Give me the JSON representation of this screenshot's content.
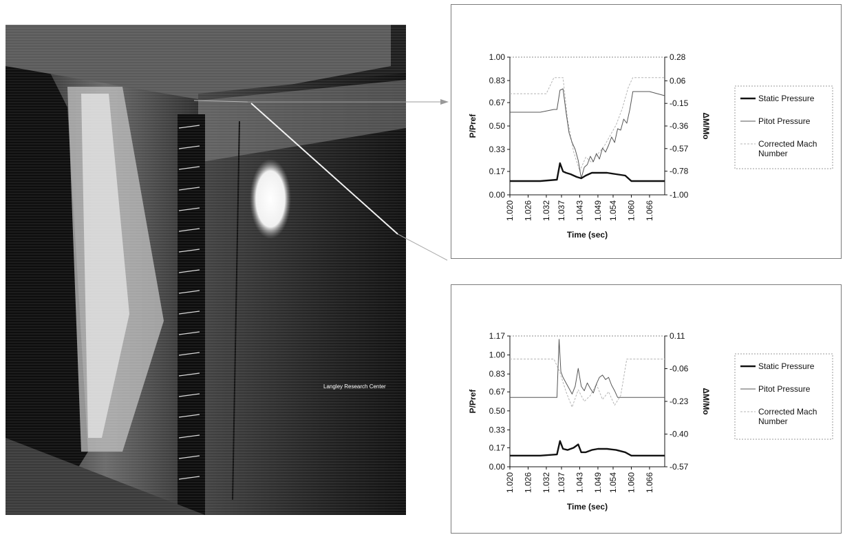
{
  "photo": {
    "caption": "Langley Research Center"
  },
  "chart_data": [
    {
      "type": "line",
      "xlabel": "Time (sec)",
      "ylabel": "P/Pref",
      "y2label": "ΔM/Mo",
      "x_ticks": [
        "1.020",
        "1.026",
        "1.032",
        "1.037",
        "1.043",
        "1.049",
        "1.054",
        "1.060",
        "1.066"
      ],
      "y_ticks": [
        "1.00",
        "0.83",
        "0.67",
        "0.50",
        "0.33",
        "0.17",
        "0.00"
      ],
      "y2_ticks": [
        "0.28",
        "0.06",
        "-0.15",
        "-0.36",
        "-0.57",
        "-0.78",
        "-1.00"
      ],
      "xlim": [
        1.02,
        1.071
      ],
      "ylim": [
        0,
        1.0
      ],
      "y2lim": [
        -1.0,
        0.28
      ],
      "grid": false,
      "legend_position": "right",
      "series": [
        {
          "name": "Static Pressure",
          "color": "#111111",
          "style": "thick",
          "axis": "left",
          "x": [
            1.02,
            1.03,
            1.0355,
            1.0365,
            1.0375,
            1.0385,
            1.04,
            1.042,
            1.0435,
            1.045,
            1.047,
            1.049,
            1.052,
            1.055,
            1.058,
            1.06,
            1.062,
            1.066,
            1.071
          ],
          "y": [
            0.1,
            0.1,
            0.11,
            0.23,
            0.17,
            0.16,
            0.15,
            0.13,
            0.12,
            0.14,
            0.16,
            0.16,
            0.16,
            0.15,
            0.14,
            0.1,
            0.1,
            0.1,
            0.1
          ]
        },
        {
          "name": "Pitot Pressure",
          "color": "#555555",
          "style": "thin",
          "axis": "left",
          "x": [
            1.02,
            1.03,
            1.0345,
            1.0355,
            1.0365,
            1.0375,
            1.0385,
            1.0395,
            1.0405,
            1.0415,
            1.0425,
            1.0435,
            1.0445,
            1.0455,
            1.0465,
            1.0475,
            1.0485,
            1.0495,
            1.0505,
            1.0515,
            1.0525,
            1.0535,
            1.0545,
            1.0555,
            1.0565,
            1.0575,
            1.0585,
            1.0595,
            1.0605,
            1.066,
            1.071
          ],
          "y": [
            0.6,
            0.6,
            0.62,
            0.62,
            0.76,
            0.77,
            0.6,
            0.45,
            0.38,
            0.33,
            0.25,
            0.12,
            0.2,
            0.22,
            0.28,
            0.24,
            0.3,
            0.26,
            0.34,
            0.31,
            0.36,
            0.42,
            0.38,
            0.48,
            0.47,
            0.55,
            0.52,
            0.62,
            0.75,
            0.75,
            0.72
          ]
        },
        {
          "name": "Corrected Mach Number",
          "color": "#b5b5b5",
          "style": "thin",
          "axis": "right",
          "x": [
            1.02,
            1.026,
            1.03,
            1.032,
            1.0345,
            1.0355,
            1.0375,
            1.039,
            1.041,
            1.043,
            1.045,
            1.047,
            1.049,
            1.051,
            1.053,
            1.055,
            1.057,
            1.059,
            1.0605,
            1.066,
            1.071
          ],
          "y": [
            -0.06,
            -0.06,
            -0.06,
            -0.06,
            0.09,
            0.09,
            0.09,
            -0.3,
            -0.6,
            -0.78,
            -0.65,
            -0.7,
            -0.62,
            -0.55,
            -0.45,
            -0.35,
            -0.2,
            0.0,
            0.09,
            0.09,
            0.09
          ]
        }
      ]
    },
    {
      "type": "line",
      "xlabel": "Time (sec)",
      "ylabel": "P/Pref",
      "y2label": "ΔM/Mo",
      "x_ticks": [
        "1.020",
        "1.026",
        "1.032",
        "1.037",
        "1.043",
        "1.049",
        "1.054",
        "1.060",
        "1.066"
      ],
      "y_ticks": [
        "1.17",
        "1.00",
        "0.83",
        "0.67",
        "0.50",
        "0.33",
        "0.17",
        "0.00"
      ],
      "y2_ticks": [
        "0.11",
        "-0.06",
        "-0.23",
        "-0.40",
        "-0.57"
      ],
      "xlim": [
        1.02,
        1.071
      ],
      "ylim": [
        0,
        1.17
      ],
      "y2lim": [
        -0.57,
        0.11
      ],
      "grid": false,
      "legend_position": "right",
      "series": [
        {
          "name": "Static Pressure",
          "color": "#111111",
          "style": "thick",
          "axis": "left",
          "x": [
            1.02,
            1.03,
            1.0355,
            1.0365,
            1.0375,
            1.039,
            1.041,
            1.0425,
            1.0435,
            1.045,
            1.047,
            1.049,
            1.052,
            1.055,
            1.058,
            1.06,
            1.062,
            1.066,
            1.071
          ],
          "y": [
            0.1,
            0.1,
            0.11,
            0.23,
            0.16,
            0.15,
            0.17,
            0.2,
            0.13,
            0.13,
            0.15,
            0.16,
            0.16,
            0.15,
            0.13,
            0.1,
            0.1,
            0.1,
            0.1
          ]
        },
        {
          "name": "Pitot Pressure",
          "color": "#555555",
          "style": "thin",
          "axis": "left",
          "x": [
            1.02,
            1.03,
            1.0355,
            1.0362,
            1.0368,
            1.0375,
            1.0385,
            1.0395,
            1.0405,
            1.0415,
            1.0425,
            1.0435,
            1.0445,
            1.0455,
            1.0465,
            1.0475,
            1.0485,
            1.0495,
            1.0505,
            1.0515,
            1.0525,
            1.0535,
            1.0545,
            1.0555,
            1.06,
            1.066,
            1.071
          ],
          "y": [
            0.62,
            0.62,
            0.62,
            1.14,
            0.85,
            0.8,
            0.75,
            0.7,
            0.65,
            0.72,
            0.88,
            0.72,
            0.68,
            0.75,
            0.7,
            0.66,
            0.74,
            0.8,
            0.82,
            0.78,
            0.8,
            0.73,
            0.68,
            0.62,
            0.62,
            0.62,
            0.62
          ]
        },
        {
          "name": "Corrected Mach Number",
          "color": "#b5b5b5",
          "style": "thin",
          "axis": "right",
          "x": [
            1.02,
            1.026,
            1.03,
            1.0345,
            1.0365,
            1.0385,
            1.0405,
            1.0425,
            1.0445,
            1.0465,
            1.0485,
            1.0505,
            1.0525,
            1.0545,
            1.0565,
            1.0585,
            1.0605,
            1.066,
            1.071
          ],
          "y": [
            -0.01,
            -0.01,
            -0.01,
            -0.01,
            -0.08,
            -0.18,
            -0.26,
            -0.17,
            -0.23,
            -0.2,
            -0.14,
            -0.22,
            -0.18,
            -0.25,
            -0.2,
            -0.01,
            -0.01,
            -0.01,
            -0.01
          ]
        }
      ]
    }
  ]
}
